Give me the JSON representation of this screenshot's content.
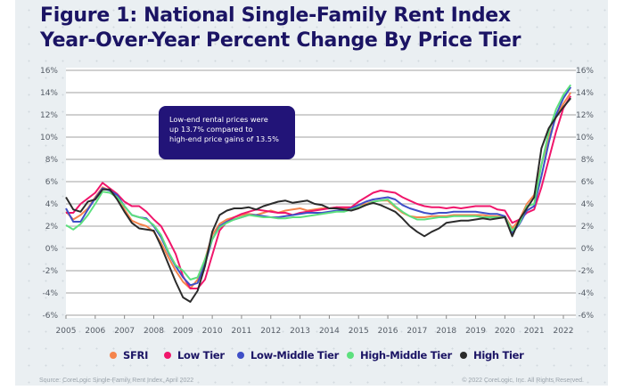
{
  "title_line1": "Figure 1: National Single-Family Rent Index",
  "title_line2": "Year-Over-Year Percent Change By Price Tier",
  "callout": {
    "line1": "Low-end rental prices were",
    "line2": "up 13.7% compared to",
    "line3": "high-end price gains of 13.5%"
  },
  "source": "Source: CoreLogic Single-Family Rent Index, April 2022",
  "copyright": "© 2022 CoreLogic, Inc. All Rights Reserved.",
  "colors": {
    "SFRI": "#f5844c",
    "Low Tier": "#f0166b",
    "Low-Middle Tier": "#3f4fc7",
    "High-Middle Tier": "#5de07e",
    "High Tier": "#2b2b2b"
  },
  "chart_data": {
    "type": "line",
    "title": "Figure 1: National Single-Family Rent Index Year-Over-Year Percent Change By Price Tier",
    "xlabel": "",
    "ylabel": "",
    "xlim": [
      2005,
      2022.3
    ],
    "ylim": [
      -6,
      16
    ],
    "yticks": [
      -6,
      -4,
      -2,
      0,
      2,
      4,
      6,
      8,
      10,
      12,
      14,
      16
    ],
    "ytick_labels": [
      "-6%",
      "-4%",
      "-2%",
      "0%",
      "2%",
      "4%",
      "6%",
      "8%",
      "10%",
      "12%",
      "14%",
      "16%"
    ],
    "xticks": [
      2005,
      2006,
      2007,
      2008,
      2009,
      2010,
      2011,
      2012,
      2013,
      2014,
      2015,
      2016,
      2017,
      2018,
      2019,
      2020,
      2021,
      2022
    ],
    "grid": true,
    "legend_position": "bottom",
    "x": [
      2005.0,
      2005.25,
      2005.5,
      2005.75,
      2006.0,
      2006.25,
      2006.5,
      2006.75,
      2007.0,
      2007.25,
      2007.5,
      2007.75,
      2008.0,
      2008.25,
      2008.5,
      2008.75,
      2009.0,
      2009.25,
      2009.5,
      2009.75,
      2010.0,
      2010.25,
      2010.5,
      2010.75,
      2011.0,
      2011.25,
      2011.5,
      2011.75,
      2012.0,
      2012.25,
      2012.5,
      2012.75,
      2013.0,
      2013.25,
      2013.5,
      2013.75,
      2014.0,
      2014.25,
      2014.5,
      2014.75,
      2015.0,
      2015.25,
      2015.5,
      2015.75,
      2016.0,
      2016.25,
      2016.5,
      2016.75,
      2017.0,
      2017.25,
      2017.5,
      2017.75,
      2018.0,
      2018.25,
      2018.5,
      2018.75,
      2019.0,
      2019.25,
      2019.5,
      2019.75,
      2020.0,
      2020.25,
      2020.5,
      2020.75,
      2021.0,
      2021.25,
      2021.5,
      2021.75,
      2022.0,
      2022.25
    ],
    "series": [
      {
        "name": "SFRI",
        "values": [
          3.3,
          2.6,
          3.0,
          3.6,
          4.6,
          5.5,
          5.2,
          4.6,
          3.5,
          2.5,
          2.2,
          2.0,
          1.5,
          0.5,
          -0.8,
          -2.0,
          -3.0,
          -3.6,
          -2.8,
          -1.0,
          1.2,
          2.2,
          2.6,
          2.8,
          3.0,
          3.1,
          3.0,
          3.2,
          3.4,
          3.2,
          3.4,
          3.5,
          3.6,
          3.4,
          3.5,
          3.6,
          3.6,
          3.7,
          3.6,
          3.7,
          3.9,
          4.0,
          4.2,
          4.3,
          4.3,
          3.7,
          3.2,
          2.9,
          2.8,
          2.8,
          2.9,
          2.9,
          2.9,
          3.0,
          3.0,
          3.0,
          3.0,
          3.0,
          2.9,
          2.9,
          2.9,
          1.8,
          2.6,
          4.0,
          4.8,
          7.5,
          10.0,
          11.8,
          13.0,
          14.0
        ]
      },
      {
        "name": "Low Tier",
        "values": [
          3.2,
          3.2,
          4.0,
          4.5,
          5.0,
          5.9,
          5.4,
          4.9,
          4.2,
          3.8,
          3.8,
          3.3,
          2.6,
          2.0,
          0.8,
          -0.5,
          -2.5,
          -3.6,
          -3.6,
          -2.8,
          -0.6,
          1.6,
          2.4,
          2.8,
          3.1,
          3.3,
          3.5,
          3.4,
          3.3,
          3.2,
          3.2,
          3.0,
          3.2,
          3.3,
          3.4,
          3.5,
          3.6,
          3.7,
          3.7,
          3.7,
          4.2,
          4.6,
          5.0,
          5.2,
          5.1,
          5.0,
          4.6,
          4.3,
          4.0,
          3.8,
          3.7,
          3.7,
          3.6,
          3.7,
          3.6,
          3.7,
          3.8,
          3.8,
          3.8,
          3.5,
          3.4,
          2.3,
          2.6,
          3.2,
          3.5,
          5.5,
          8.0,
          10.5,
          12.6,
          13.7
        ]
      },
      {
        "name": "Low-Middle Tier",
        "values": [
          3.6,
          2.4,
          2.4,
          3.5,
          4.5,
          5.4,
          5.2,
          4.8,
          3.8,
          3.0,
          2.8,
          2.7,
          2.0,
          1.0,
          -0.4,
          -1.6,
          -2.6,
          -3.3,
          -3.1,
          -1.4,
          0.8,
          2.0,
          2.4,
          2.6,
          2.8,
          3.0,
          3.0,
          2.9,
          2.8,
          2.8,
          2.9,
          3.0,
          3.1,
          3.2,
          3.2,
          3.2,
          3.3,
          3.4,
          3.4,
          3.6,
          3.9,
          4.2,
          4.4,
          4.5,
          4.6,
          4.4,
          3.9,
          3.6,
          3.4,
          3.2,
          3.1,
          3.2,
          3.2,
          3.3,
          3.3,
          3.3,
          3.3,
          3.2,
          3.1,
          3.1,
          2.9,
          1.4,
          2.2,
          3.4,
          3.8,
          6.5,
          9.5,
          12.0,
          13.5,
          14.5
        ]
      },
      {
        "name": "High-Middle Tier",
        "values": [
          2.1,
          1.7,
          2.2,
          3.0,
          4.0,
          5.1,
          5.0,
          4.6,
          3.8,
          3.0,
          2.8,
          2.6,
          2.1,
          1.2,
          -0.3,
          -1.5,
          -2.0,
          -2.8,
          -2.6,
          -1.0,
          0.8,
          1.9,
          2.3,
          2.6,
          2.8,
          3.0,
          2.9,
          2.8,
          2.8,
          2.7,
          2.7,
          2.8,
          2.8,
          2.9,
          3.0,
          3.1,
          3.2,
          3.3,
          3.3,
          3.5,
          3.7,
          3.9,
          4.2,
          4.3,
          4.4,
          3.8,
          3.3,
          2.9,
          2.6,
          2.6,
          2.7,
          2.8,
          2.8,
          2.9,
          2.9,
          2.9,
          2.9,
          2.8,
          2.8,
          2.8,
          2.8,
          1.6,
          2.3,
          3.8,
          4.0,
          7.5,
          10.5,
          12.5,
          13.8,
          14.7
        ]
      },
      {
        "name": "High Tier",
        "values": [
          4.6,
          3.5,
          3.3,
          4.2,
          4.4,
          5.3,
          5.3,
          4.4,
          3.3,
          2.3,
          1.8,
          1.7,
          1.6,
          0.2,
          -1.4,
          -3.0,
          -4.4,
          -4.8,
          -3.8,
          -1.6,
          1.5,
          3.0,
          3.4,
          3.6,
          3.6,
          3.7,
          3.5,
          3.8,
          4.0,
          4.2,
          4.3,
          4.1,
          4.2,
          4.3,
          4.0,
          3.9,
          3.6,
          3.6,
          3.5,
          3.4,
          3.6,
          3.9,
          4.1,
          3.9,
          3.6,
          3.3,
          2.7,
          2.0,
          1.5,
          1.1,
          1.5,
          1.8,
          2.3,
          2.4,
          2.5,
          2.5,
          2.6,
          2.7,
          2.6,
          2.7,
          2.8,
          1.1,
          2.6,
          3.6,
          4.6,
          9.0,
          10.8,
          11.8,
          12.7,
          13.5
        ]
      }
    ]
  }
}
